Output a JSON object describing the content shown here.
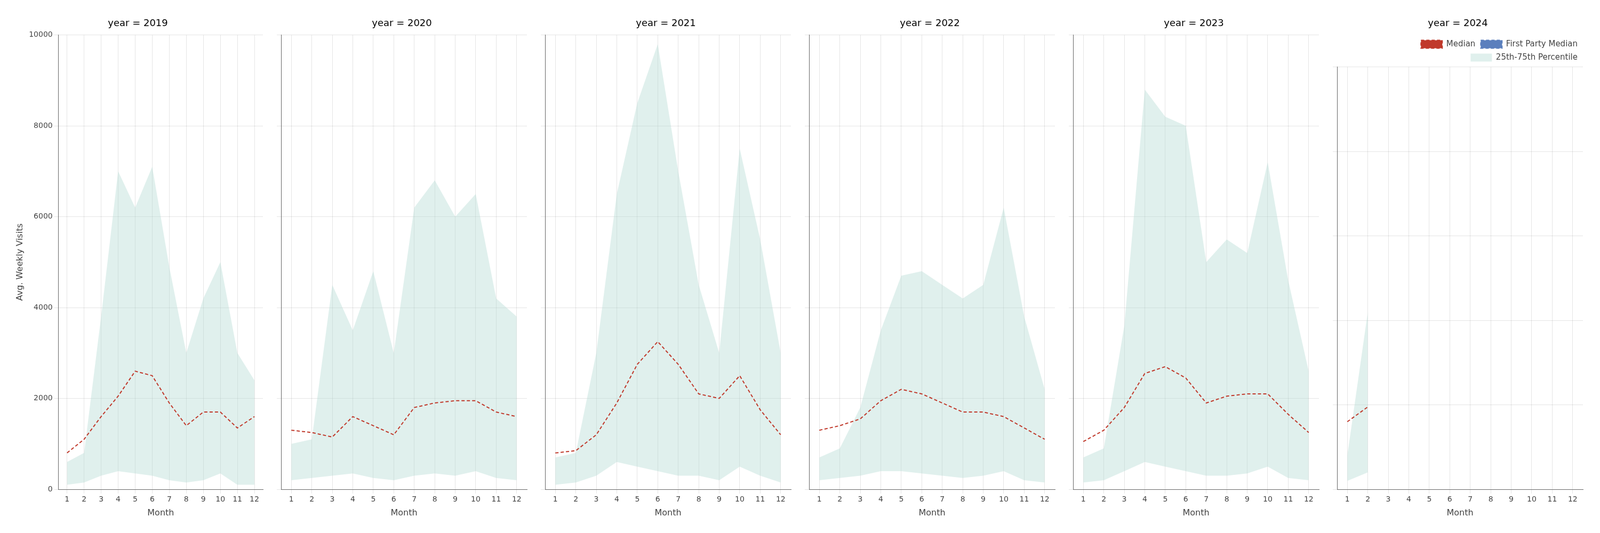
{
  "chart_data": [
    {
      "type": "line",
      "title": "year = 2019",
      "xlabel": "Month",
      "ylabel": "Avg. Weekly Visits",
      "x": [
        1,
        2,
        3,
        4,
        5,
        6,
        7,
        8,
        9,
        10,
        11,
        12
      ],
      "xlim": [
        0.5,
        12.5
      ],
      "xticks": [
        1,
        2,
        3,
        4,
        5,
        6,
        7,
        8,
        9,
        10,
        11,
        12
      ],
      "ylim": [
        0,
        10000
      ],
      "yticks": [
        0,
        2000,
        4000,
        6000,
        8000,
        10000
      ],
      "grid": true,
      "series": [
        {
          "name": "Median",
          "type": "line",
          "color": "#c0392b",
          "line_style": "dashed",
          "values": [
            800,
            1100,
            1600,
            2050,
            2600,
            2500,
            1900,
            1400,
            1700,
            1700,
            1350,
            1600
          ]
        },
        {
          "name": "25th-75th Percentile",
          "type": "area",
          "color": "#aed8d0",
          "lower": [
            100,
            150,
            300,
            400,
            350,
            300,
            200,
            150,
            200,
            350,
            100,
            100
          ],
          "upper": [
            600,
            800,
            3800,
            7000,
            6200,
            7100,
            4900,
            3000,
            4200,
            5000,
            3000,
            2400
          ]
        }
      ]
    },
    {
      "type": "line",
      "title": "year = 2020",
      "xlabel": "Month",
      "x": [
        1,
        2,
        3,
        4,
        5,
        6,
        7,
        8,
        9,
        10,
        11,
        12
      ],
      "xlim": [
        0.5,
        12.5
      ],
      "xticks": [
        1,
        2,
        3,
        4,
        5,
        6,
        7,
        8,
        9,
        10,
        11,
        12
      ],
      "ylim": [
        0,
        10000
      ],
      "yticks": [
        0,
        2000,
        4000,
        6000,
        8000,
        10000
      ],
      "grid": true,
      "tick_labels": "x",
      "series": [
        {
          "name": "Median",
          "type": "line",
          "color": "#c0392b",
          "line_style": "dashed",
          "values": [
            1300,
            1250,
            1150,
            1600,
            1400,
            1200,
            1800,
            1900,
            1950,
            1950,
            1700,
            1600
          ]
        },
        {
          "name": "25th-75th Percentile",
          "type": "area",
          "color": "#aed8d0",
          "lower": [
            200,
            250,
            300,
            350,
            250,
            200,
            300,
            350,
            300,
            400,
            250,
            200
          ],
          "upper": [
            1000,
            1100,
            4500,
            3500,
            4800,
            3000,
            6200,
            6800,
            6000,
            6500,
            4200,
            3800
          ]
        }
      ]
    },
    {
      "type": "line",
      "title": "year = 2021",
      "xlabel": "Month",
      "x": [
        1,
        2,
        3,
        4,
        5,
        6,
        7,
        8,
        9,
        10,
        11,
        12
      ],
      "xlim": [
        0.5,
        12.5
      ],
      "xticks": [
        1,
        2,
        3,
        4,
        5,
        6,
        7,
        8,
        9,
        10,
        11,
        12
      ],
      "ylim": [
        0,
        10000
      ],
      "yticks": [
        0,
        2000,
        4000,
        6000,
        8000,
        10000
      ],
      "grid": true,
      "tick_labels": "x",
      "series": [
        {
          "name": "Median",
          "type": "line",
          "color": "#c0392b",
          "line_style": "dashed",
          "values": [
            800,
            850,
            1200,
            1900,
            2750,
            3250,
            2750,
            2100,
            2000,
            2500,
            1750,
            1200
          ]
        },
        {
          "name": "25th-75th Percentile",
          "type": "area",
          "color": "#aed8d0",
          "lower": [
            100,
            150,
            300,
            600,
            500,
            400,
            300,
            300,
            200,
            500,
            300,
            150
          ],
          "upper": [
            700,
            800,
            3000,
            6500,
            8500,
            9800,
            7000,
            4500,
            3000,
            7500,
            5500,
            3000
          ]
        }
      ]
    },
    {
      "type": "line",
      "title": "year = 2022",
      "xlabel": "Month",
      "x": [
        1,
        2,
        3,
        4,
        5,
        6,
        7,
        8,
        9,
        10,
        11,
        12
      ],
      "xlim": [
        0.5,
        12.5
      ],
      "xticks": [
        1,
        2,
        3,
        4,
        5,
        6,
        7,
        8,
        9,
        10,
        11,
        12
      ],
      "ylim": [
        0,
        10000
      ],
      "yticks": [
        0,
        2000,
        4000,
        6000,
        8000,
        10000
      ],
      "grid": true,
      "tick_labels": "x",
      "series": [
        {
          "name": "Median",
          "type": "line",
          "color": "#c0392b",
          "line_style": "dashed",
          "values": [
            1300,
            1400,
            1550,
            1950,
            2200,
            2100,
            1900,
            1700,
            1700,
            1600,
            1350,
            1100
          ]
        },
        {
          "name": "25th-75th Percentile",
          "type": "area",
          "color": "#aed8d0",
          "lower": [
            200,
            250,
            300,
            400,
            400,
            350,
            300,
            250,
            300,
            400,
            200,
            150
          ],
          "upper": [
            700,
            900,
            1800,
            3500,
            4700,
            4800,
            4500,
            4200,
            4500,
            6200,
            3800,
            2200
          ]
        }
      ]
    },
    {
      "type": "line",
      "title": "year = 2023",
      "xlabel": "Month",
      "x": [
        1,
        2,
        3,
        4,
        5,
        6,
        7,
        8,
        9,
        10,
        11,
        12
      ],
      "xlim": [
        0.5,
        12.5
      ],
      "xticks": [
        1,
        2,
        3,
        4,
        5,
        6,
        7,
        8,
        9,
        10,
        11,
        12
      ],
      "ylim": [
        0,
        10000
      ],
      "yticks": [
        0,
        2000,
        4000,
        6000,
        8000,
        10000
      ],
      "grid": true,
      "tick_labels": "x",
      "series": [
        {
          "name": "Median",
          "type": "line",
          "color": "#c0392b",
          "line_style": "dashed",
          "values": [
            1050,
            1300,
            1800,
            2550,
            2700,
            2450,
            1900,
            2050,
            2100,
            2100,
            1650,
            1250
          ]
        },
        {
          "name": "25th-75th Percentile",
          "type": "area",
          "color": "#aed8d0",
          "lower": [
            150,
            200,
            400,
            600,
            500,
            400,
            300,
            300,
            350,
            500,
            250,
            200
          ],
          "upper": [
            700,
            900,
            3600,
            8800,
            8200,
            8000,
            5000,
            5500,
            5200,
            7200,
            4600,
            2600
          ]
        }
      ]
    },
    {
      "type": "line",
      "title": "year = 2024",
      "xlabel": "Month",
      "x": [
        1,
        2,
        3,
        4,
        5,
        6,
        7,
        8,
        9,
        10,
        11,
        12
      ],
      "xlim": [
        0.5,
        12.5
      ],
      "xticks": [
        1,
        2,
        3,
        4,
        5,
        6,
        7,
        8,
        9,
        10,
        11,
        12
      ],
      "ylim": [
        0,
        10000
      ],
      "yticks": [
        0,
        2000,
        4000,
        6000,
        8000,
        10000
      ],
      "grid": true,
      "tick_labels": "x",
      "legend": "upper right",
      "series": [
        {
          "name": "Median",
          "type": "line",
          "color": "#c0392b",
          "line_style": "dashed",
          "values": [
            1600,
            1950,
            null,
            null,
            null,
            null,
            null,
            null,
            null,
            null,
            null,
            null
          ]
        },
        {
          "name": "First Party Median",
          "type": "line",
          "color": "#5b7fbd",
          "line_style": "dashed",
          "values": [
            null,
            null,
            null,
            null,
            null,
            null,
            null,
            null,
            null,
            null,
            null,
            null
          ]
        },
        {
          "name": "25th-75th Percentile",
          "type": "area",
          "color": "#aed8d0",
          "lower": [
            200,
            400,
            null,
            null,
            null,
            null,
            null,
            null,
            null,
            null,
            null,
            null
          ],
          "upper": [
            800,
            4200,
            null,
            null,
            null,
            null,
            null,
            null,
            null,
            null,
            null,
            null
          ]
        }
      ]
    }
  ]
}
